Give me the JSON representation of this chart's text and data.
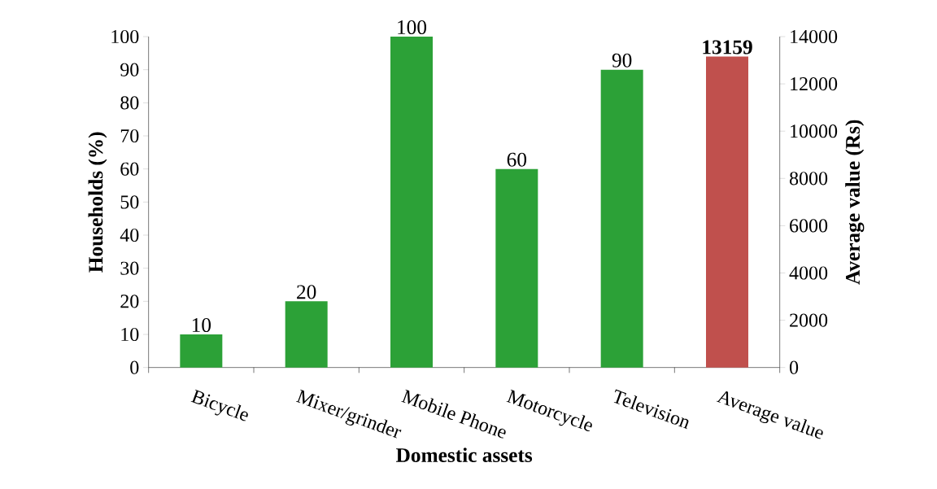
{
  "chart_data": {
    "type": "bar",
    "xlabel": "Domestic assets",
    "ylabel": "Households (%)",
    "y2label": "Average value (Rs)",
    "categories": [
      "Bicycle",
      "Mixer/grinder",
      "Mobile Phone",
      "Motorcycle",
      "Television",
      "Average value"
    ],
    "series": [
      {
        "color": "#2ca137",
        "values": [
          10,
          20,
          100,
          60,
          90,
          null
        ]
      },
      {
        "color": "#c0504d",
        "values": [
          null,
          null,
          null,
          null,
          null,
          13159
        ],
        "axis": "y2"
      }
    ],
    "ylim": [
      0,
      100
    ],
    "yticks": [
      0,
      10,
      20,
      30,
      40,
      50,
      60,
      70,
      80,
      90,
      100
    ],
    "y2lim": [
      0,
      14000
    ],
    "y2ticks": [
      0,
      2000,
      4000,
      6000,
      8000,
      10000,
      12000,
      14000
    ],
    "data_labels": true
  }
}
